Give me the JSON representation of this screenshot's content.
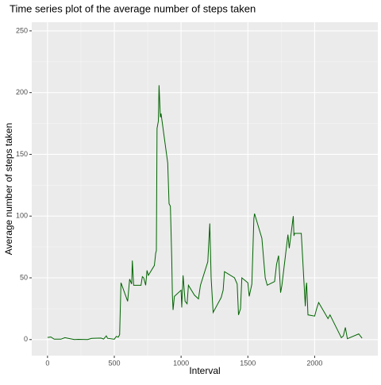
{
  "chart_data": {
    "type": "line",
    "title": "Time series plot of the average number of steps taken",
    "xlabel": "Interval",
    "ylabel": "Average number of steps taken",
    "x": [
      0,
      25,
      50,
      100,
      130,
      200,
      230,
      300,
      330,
      400,
      420,
      440,
      450,
      500,
      515,
      530,
      540,
      550,
      600,
      615,
      630,
      635,
      645,
      700,
      710,
      720,
      735,
      745,
      755,
      800,
      810,
      815,
      820,
      830,
      835,
      845,
      850,
      900,
      910,
      915,
      920,
      930,
      935,
      940,
      950,
      1000,
      1005,
      1015,
      1030,
      1045,
      1055,
      1100,
      1130,
      1145,
      1200,
      1215,
      1225,
      1240,
      1300,
      1315,
      1325,
      1400,
      1420,
      1430,
      1445,
      1455,
      1500,
      1510,
      1530,
      1545,
      1550,
      1605,
      1630,
      1645,
      1700,
      1715,
      1730,
      1745,
      1755,
      1800,
      1810,
      1840,
      1845,
      1850,
      1900,
      1930,
      1935,
      1940,
      1950,
      2000,
      2015,
      2030,
      2100,
      2115,
      2200,
      2215,
      2230,
      2245,
      2330,
      2355
    ],
    "series": [
      {
        "name": "steps",
        "color": "#006400",
        "values": [
          1.7,
          2.1,
          0.3,
          0.3,
          1.5,
          0,
          0.2,
          0,
          1,
          1.2,
          0.4,
          3,
          1,
          0.3,
          2.5,
          2,
          4,
          46,
          31,
          49,
          45,
          64,
          44,
          44,
          51,
          50,
          44,
          56,
          52,
          60,
          70,
          72,
          171,
          177,
          206,
          180,
          183,
          143,
          110,
          109,
          108,
          66,
          36,
          24,
          35,
          40,
          26,
          52,
          31,
          29,
          44,
          36,
          33,
          44,
          63,
          94,
          50,
          22,
          34,
          40,
          55,
          50,
          45,
          20,
          25,
          50,
          46,
          35,
          45,
          98,
          102,
          82,
          50,
          44,
          47,
          61,
          68,
          38,
          44,
          85,
          74,
          100,
          84,
          86,
          86,
          27,
          41,
          46,
          20,
          19,
          25,
          30,
          17,
          20,
          1.5,
          3,
          9.8,
          0.7,
          4.6,
          1.1
        ]
      }
    ],
    "xlim": [
      -118,
      2473
    ],
    "xticks": [
      0,
      500,
      1000,
      1500,
      2000
    ],
    "ylim": [
      -13,
      257
    ],
    "yticks": [
      0,
      50,
      100,
      150,
      200,
      250
    ],
    "grid": true
  }
}
